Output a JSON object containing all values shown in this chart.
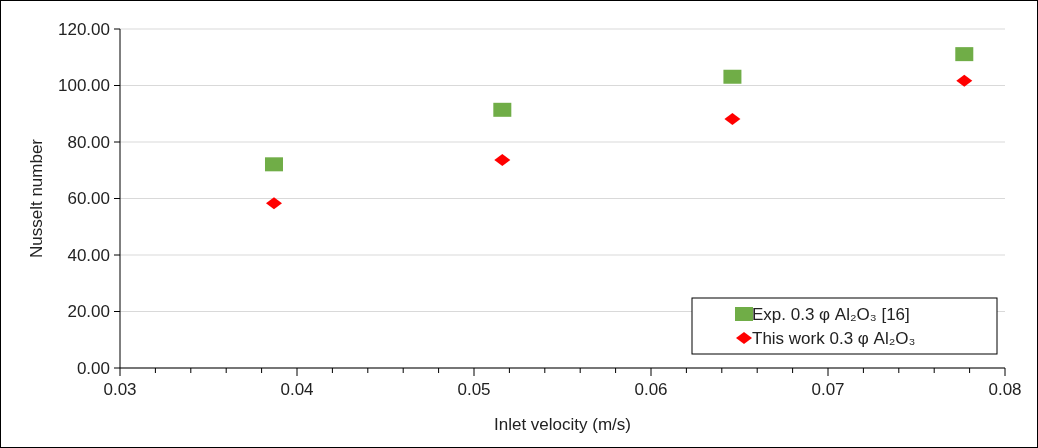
{
  "chart_data": {
    "type": "scatter",
    "xlabel": "Inlet velocity (m/s)",
    "ylabel": "Nusselt number",
    "x": [
      0.0387,
      0.0516,
      0.0646,
      0.0777
    ],
    "series": [
      {
        "name": "Exp. 0.3 φ Al₂O₃ [16]",
        "color": "#70ad47",
        "marker": "square",
        "values": [
          72.1,
          91.4,
          103.1,
          111.1
        ]
      },
      {
        "name": "This work 0.3 φ Al₂O₃",
        "color": "#ff0000",
        "marker": "diamond",
        "values": [
          58.3,
          73.6,
          88.1,
          101.7
        ]
      }
    ],
    "xlim": [
      0.03,
      0.08
    ],
    "xticks": [
      0.03,
      {
        "value": 0.032,
        "label": null
      },
      {
        "value": 0.034,
        "label": null
      },
      {
        "value": 0.036,
        "label": null
      },
      {
        "value": 0.038,
        "label": null
      },
      0.04,
      {
        "value": 0.042,
        "label": null
      },
      {
        "value": 0.044,
        "label": null
      },
      {
        "value": 0.046,
        "label": null
      },
      {
        "value": 0.048,
        "label": null
      },
      0.05,
      {
        "value": 0.052,
        "label": null
      },
      {
        "value": 0.054,
        "label": null
      },
      {
        "value": 0.056,
        "label": null
      },
      {
        "value": 0.058,
        "label": null
      },
      0.06,
      {
        "value": 0.062,
        "label": null
      },
      {
        "value": 0.064,
        "label": null
      },
      {
        "value": 0.066,
        "label": null
      },
      {
        "value": 0.068,
        "label": null
      },
      0.07,
      {
        "value": 0.072,
        "label": null
      },
      {
        "value": 0.074,
        "label": null
      },
      {
        "value": 0.076,
        "label": null
      },
      {
        "value": 0.078,
        "label": null
      },
      0.08
    ],
    "ylim": [
      0,
      120
    ],
    "yticks": [
      {
        "value": 0,
        "label": "0.00"
      },
      {
        "value": 20,
        "label": "20.00"
      },
      {
        "value": 40,
        "label": "40.00"
      },
      {
        "value": 60,
        "label": "60.00"
      },
      {
        "value": 80,
        "label": "80.00"
      },
      {
        "value": 100,
        "label": "100.00"
      },
      {
        "value": 120,
        "label": "120.00"
      }
    ],
    "grid": "y",
    "legend": "bottom right"
  }
}
